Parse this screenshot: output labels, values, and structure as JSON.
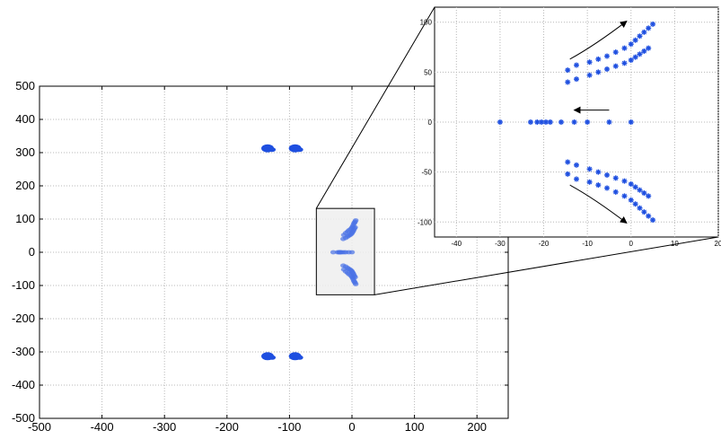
{
  "chart_data": [
    {
      "type": "scatter",
      "xlim": [
        -500,
        250
      ],
      "ylim": [
        -500,
        500
      ],
      "x_ticks": [
        -500,
        -400,
        -300,
        -200,
        -100,
        0,
        100,
        200
      ],
      "y_ticks": [
        -500,
        -400,
        -300,
        -200,
        -100,
        0,
        100,
        200,
        300,
        400,
        500
      ],
      "x_tick_labels": [
        "-500",
        "-400",
        "-300",
        "-200",
        "-100",
        "0",
        "100",
        "200"
      ],
      "y_tick_labels": [
        "-500",
        "-400",
        "-300",
        "-200",
        "-100",
        "0",
        "100",
        "200",
        "300",
        "400",
        "500"
      ],
      "grid": true,
      "zoom_box": {
        "x": [
          -57,
          36
        ],
        "y": [
          -128,
          132
        ]
      },
      "clusters": [
        {
          "x": -135,
          "y": 313
        },
        {
          "x": -91,
          "y": 313
        },
        {
          "x": -135,
          "y": -313
        },
        {
          "x": -91,
          "y": -313
        }
      ],
      "points": [
        [
          -30,
          0
        ],
        [
          -23,
          0
        ],
        [
          -21,
          0
        ],
        [
          -20,
          0
        ],
        [
          -19,
          0
        ],
        [
          -18,
          0
        ],
        [
          -16,
          0
        ],
        [
          -13,
          0
        ],
        [
          -10,
          0
        ],
        [
          -5,
          0
        ],
        [
          0,
          0
        ],
        [
          -14,
          40
        ],
        [
          -13,
          52
        ],
        [
          -10,
          43
        ],
        [
          -10,
          58
        ],
        [
          -7,
          47
        ],
        [
          -7,
          62
        ],
        [
          -5,
          50
        ],
        [
          -5,
          66
        ],
        [
          -3,
          52
        ],
        [
          -2,
          70
        ],
        [
          -1,
          55
        ],
        [
          0,
          74
        ],
        [
          0,
          58
        ],
        [
          1,
          77
        ],
        [
          1,
          61
        ],
        [
          2,
          81
        ],
        [
          2,
          64
        ],
        [
          3,
          86
        ],
        [
          3,
          68
        ],
        [
          4,
          89
        ],
        [
          4,
          72
        ],
        [
          5,
          92
        ],
        [
          5,
          75
        ],
        [
          6,
          96
        ],
        [
          -14,
          -40
        ],
        [
          -13,
          -52
        ],
        [
          -10,
          -43
        ],
        [
          -10,
          -58
        ],
        [
          -7,
          -47
        ],
        [
          -7,
          -62
        ],
        [
          -5,
          -50
        ],
        [
          -5,
          -66
        ],
        [
          -3,
          -52
        ],
        [
          -2,
          -70
        ],
        [
          -1,
          -55
        ],
        [
          0,
          -74
        ],
        [
          0,
          -58
        ],
        [
          1,
          -77
        ],
        [
          1,
          -61
        ],
        [
          2,
          -81
        ],
        [
          2,
          -64
        ],
        [
          3,
          -86
        ],
        [
          3,
          -68
        ],
        [
          4,
          -89
        ],
        [
          4,
          -72
        ],
        [
          5,
          -92
        ],
        [
          5,
          -75
        ],
        [
          6,
          -96
        ]
      ]
    },
    {
      "type": "scatter",
      "role": "inset",
      "xlim": [
        -45,
        20
      ],
      "ylim": [
        -115,
        115
      ],
      "x_ticks": [
        -40,
        -30,
        -20,
        -10,
        0,
        10,
        20
      ],
      "y_ticks": [
        -100,
        -50,
        0,
        50,
        100
      ],
      "x_tick_labels": [
        "-40",
        "-30",
        "-20",
        "-10",
        "0",
        "10",
        "20"
      ],
      "y_tick_labels": [
        "-100",
        "-50",
        "0",
        "50",
        "100"
      ],
      "grid": true,
      "points": [
        [
          -30,
          0
        ],
        [
          -23,
          0
        ],
        [
          -21.5,
          0
        ],
        [
          -20.5,
          0
        ],
        [
          -19.5,
          0
        ],
        [
          -18.5,
          0
        ],
        [
          -16,
          0
        ],
        [
          -13,
          0
        ],
        [
          -10,
          0
        ],
        [
          -5,
          0
        ],
        [
          0,
          0
        ],
        [
          -14.5,
          52
        ],
        [
          -14.5,
          40
        ],
        [
          -12.5,
          57
        ],
        [
          -12.5,
          43
        ],
        [
          -9.5,
          60
        ],
        [
          -9.5,
          47
        ],
        [
          -7.5,
          63
        ],
        [
          -7.5,
          50
        ],
        [
          -5.5,
          66
        ],
        [
          -5.5,
          53
        ],
        [
          -3.5,
          70
        ],
        [
          -3.5,
          56
        ],
        [
          -1.5,
          74
        ],
        [
          -1.5,
          59
        ],
        [
          0,
          78
        ],
        [
          0,
          62
        ],
        [
          1,
          82
        ],
        [
          1,
          65
        ],
        [
          2,
          86
        ],
        [
          2,
          68
        ],
        [
          3,
          90
        ],
        [
          3,
          71
        ],
        [
          4,
          94
        ],
        [
          4,
          74
        ],
        [
          5,
          98
        ],
        [
          -14.5,
          -52
        ],
        [
          -14.5,
          -40
        ],
        [
          -12.5,
          -57
        ],
        [
          -12.5,
          -43
        ],
        [
          -9.5,
          -60
        ],
        [
          -9.5,
          -47
        ],
        [
          -7.5,
          -63
        ],
        [
          -7.5,
          -50
        ],
        [
          -5.5,
          -66
        ],
        [
          -5.5,
          -53
        ],
        [
          -3.5,
          -70
        ],
        [
          -3.5,
          -56
        ],
        [
          -1.5,
          -74
        ],
        [
          -1.5,
          -59
        ],
        [
          0,
          -78
        ],
        [
          0,
          -62
        ],
        [
          1,
          -82
        ],
        [
          1,
          -65
        ],
        [
          2,
          -86
        ],
        [
          2,
          -68
        ],
        [
          3,
          -90
        ],
        [
          3,
          -71
        ],
        [
          4,
          -94
        ],
        [
          4,
          -74
        ],
        [
          5,
          -98
        ]
      ],
      "arrows": [
        {
          "from": [
            -14,
            63
          ],
          "to": [
            -1,
            101
          ]
        },
        {
          "from": [
            -5,
            12
          ],
          "to": [
            -13,
            12
          ]
        },
        {
          "from": [
            -14,
            -63
          ],
          "to": [
            -1,
            -101
          ]
        }
      ]
    }
  ]
}
